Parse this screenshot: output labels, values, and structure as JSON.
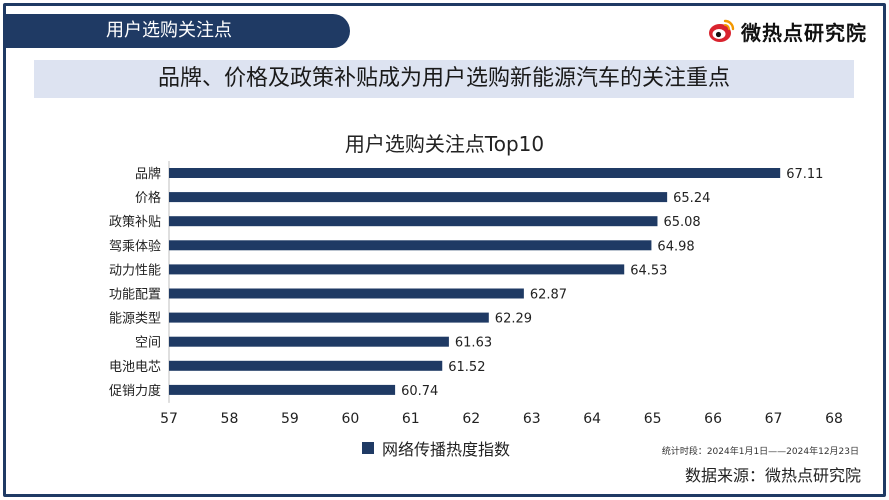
{
  "header": {
    "section_label": "用户选购关注点"
  },
  "brand": {
    "name": "微热点研究院",
    "icon": "weibo-eye-logo-icon"
  },
  "headline": "品牌、价格及政策补贴成为用户选购新能源汽车的关注重点",
  "chart_data": {
    "type": "bar",
    "orientation": "horizontal",
    "title": "用户选购关注点Top10",
    "categories": [
      "品牌",
      "价格",
      "政策补贴",
      "驾乘体验",
      "动力性能",
      "功能配置",
      "能源类型",
      "空间",
      "电池电芯",
      "促销力度"
    ],
    "values": [
      67.11,
      65.24,
      65.08,
      64.98,
      64.53,
      62.87,
      62.29,
      61.63,
      61.52,
      60.74
    ],
    "value_labels": [
      "67.11",
      "65.24",
      "65.08",
      "64.98",
      "64.53",
      "62.87",
      "62.29",
      "61.63",
      "61.52",
      "60.74"
    ],
    "series_name": "网络传播热度指数",
    "xlim": [
      57,
      68
    ],
    "xticks": [
      "57",
      "58",
      "59",
      "60",
      "61",
      "62",
      "63",
      "64",
      "65",
      "66",
      "67",
      "68"
    ],
    "bar_color": "#1f3a64",
    "legend_position": "bottom"
  },
  "footer": {
    "period": "统计时段：2024年1月1日——2024年12月23日",
    "source": "数据来源：微热点研究院"
  },
  "colors": {
    "primary": "#1f3a64",
    "headline_band": "#dde3f1",
    "brand_red": "#d9232e"
  }
}
